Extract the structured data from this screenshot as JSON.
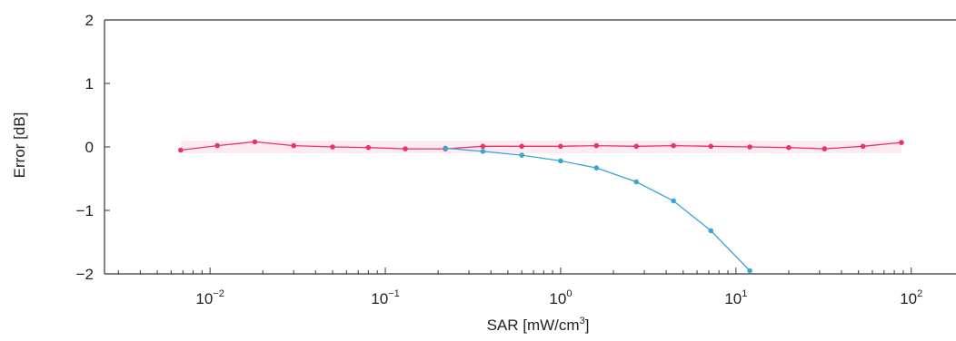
{
  "chart_data": {
    "type": "line",
    "title": "",
    "xlabel": "SAR [mW/cm",
    "xlabel_sup": "3",
    "xlabel_tail": "]",
    "ylabel": "Error [dB]",
    "x_scale": "log",
    "xlim": [
      0.0025,
      180
    ],
    "ylim": [
      -2,
      2
    ],
    "grid": false,
    "legend": "none",
    "x_ticks": [
      {
        "value": 0.01,
        "base": "10",
        "exp": "−2"
      },
      {
        "value": 0.1,
        "base": "10",
        "exp": "−1"
      },
      {
        "value": 1,
        "base": "10",
        "exp": "0"
      },
      {
        "value": 10,
        "base": "10",
        "exp": "1"
      },
      {
        "value": 100,
        "base": "10",
        "exp": "2"
      }
    ],
    "y_ticks": [
      {
        "value": 2,
        "label": "2"
      },
      {
        "value": 1,
        "label": "1"
      },
      {
        "value": 0,
        "label": "0"
      },
      {
        "value": -1,
        "label": "−1"
      },
      {
        "value": -2,
        "label": "−2"
      }
    ],
    "series": [
      {
        "color": "#e8336b",
        "band_color": "#fbe3ea",
        "x": [
          0.0068,
          0.011,
          0.018,
          0.03,
          0.05,
          0.08,
          0.13,
          0.22,
          0.36,
          0.6,
          1.0,
          1.6,
          2.7,
          4.4,
          7.2,
          12,
          20,
          32,
          53,
          88
        ],
        "y": [
          -0.05,
          0.02,
          0.08,
          0.02,
          0.0,
          -0.01,
          -0.03,
          -0.03,
          0.01,
          0.01,
          0.01,
          0.02,
          0.01,
          0.02,
          0.01,
          0.0,
          -0.01,
          -0.03,
          0.01,
          0.07
        ]
      },
      {
        "color": "#3aa6d6",
        "x": [
          0.22,
          0.36,
          0.6,
          1.0,
          1.6,
          2.7,
          4.4,
          7.2,
          12
        ],
        "y": [
          -0.02,
          -0.07,
          -0.13,
          -0.22,
          -0.33,
          -0.55,
          -0.85,
          -1.32,
          -1.95
        ]
      }
    ]
  }
}
